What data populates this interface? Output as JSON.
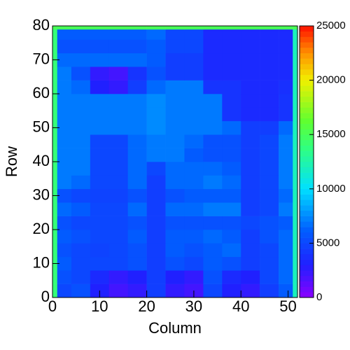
{
  "chart_data": {
    "type": "heatmap",
    "x_label": "Column",
    "y_label": "Row",
    "xbins": [
      0,
      1,
      4,
      8,
      12,
      16,
      20,
      24,
      28,
      32,
      36,
      40,
      44,
      48,
      51,
      52
    ],
    "ybins": [
      0,
      4,
      8,
      12,
      16,
      20,
      24,
      28,
      32,
      36,
      40,
      44,
      48,
      52,
      56,
      60,
      64,
      68,
      72,
      76,
      79,
      80
    ],
    "z": [
      [
        14000,
        5000,
        5500,
        3000,
        2000,
        2500,
        4500,
        2500,
        2000,
        5000,
        3000,
        2500,
        4500,
        6000,
        12000
      ],
      [
        14000,
        5500,
        5000,
        3500,
        2500,
        3000,
        4500,
        3000,
        2500,
        5500,
        3500,
        3000,
        5000,
        6500,
        12000
      ],
      [
        14000,
        6000,
        5000,
        5000,
        5000,
        5500,
        4500,
        5500,
        5000,
        6000,
        5500,
        4500,
        5000,
        6500,
        12000
      ],
      [
        14000,
        5500,
        5000,
        4800,
        5000,
        5500,
        4500,
        6000,
        5500,
        6000,
        6500,
        4500,
        5000,
        6500,
        12000
      ],
      [
        14000,
        6000,
        5500,
        5000,
        5000,
        6000,
        4500,
        6000,
        6000,
        6500,
        6000,
        4500,
        5500,
        6500,
        12000
      ],
      [
        14000,
        5500,
        5000,
        5000,
        5000,
        5500,
        4500,
        5500,
        5500,
        5500,
        5500,
        5000,
        5500,
        6000,
        12000
      ],
      [
        14000,
        6500,
        6000,
        5000,
        5000,
        6500,
        4500,
        6500,
        6500,
        7000,
        7000,
        4500,
        5000,
        7000,
        12000
      ],
      [
        14000,
        5500,
        5000,
        4800,
        4800,
        5500,
        4500,
        5500,
        6000,
        6000,
        6000,
        4500,
        5000,
        6500,
        12000
      ],
      [
        14000,
        7000,
        6500,
        5000,
        5000,
        6500,
        4500,
        6500,
        6500,
        7000,
        6500,
        4500,
        5000,
        7000,
        12000
      ],
      [
        14000,
        7000,
        7000,
        5000,
        5000,
        6500,
        5000,
        6500,
        6500,
        6500,
        6000,
        4500,
        5000,
        7000,
        12000
      ],
      [
        14000,
        7000,
        7000,
        5000,
        5000,
        6500,
        7000,
        7000,
        6000,
        5500,
        5500,
        4500,
        5000,
        7000,
        12000
      ],
      [
        14000,
        7000,
        7000,
        5000,
        5000,
        6500,
        7000,
        7000,
        6500,
        5500,
        5500,
        4500,
        5000,
        7000,
        12000
      ],
      [
        14000,
        7000,
        7000,
        7000,
        7000,
        7000,
        7500,
        7000,
        7000,
        7000,
        6500,
        4500,
        4500,
        6500,
        12000
      ],
      [
        14000,
        7000,
        7000,
        7000,
        7000,
        7000,
        7500,
        7000,
        7000,
        7000,
        4000,
        3500,
        3500,
        4000,
        12000
      ],
      [
        14000,
        7000,
        7000,
        7000,
        7000,
        7000,
        7500,
        7000,
        7000,
        7000,
        4000,
        3500,
        3500,
        4000,
        12000
      ],
      [
        14000,
        7000,
        6500,
        3000,
        2500,
        4500,
        6500,
        7000,
        7000,
        4000,
        4000,
        3500,
        3500,
        3800,
        12000
      ],
      [
        14000,
        7000,
        5500,
        2500,
        2000,
        4000,
        5500,
        4500,
        4500,
        3500,
        3500,
        3500,
        3500,
        3500,
        12000
      ],
      [
        14000,
        6500,
        6500,
        6500,
        6500,
        6500,
        6000,
        4500,
        4500,
        3500,
        3500,
        3500,
        3500,
        3500,
        12000
      ],
      [
        14000,
        5500,
        5500,
        5500,
        5500,
        5500,
        6000,
        5000,
        5000,
        3500,
        3500,
        3500,
        3500,
        3500,
        12000
      ],
      [
        14000,
        6000,
        6000,
        6000,
        6000,
        6000,
        6500,
        5000,
        5000,
        3500,
        3500,
        3500,
        3500,
        3500,
        12000
      ],
      [
        15000,
        15000,
        15000,
        15000,
        15000,
        15000,
        15000,
        15000,
        15000,
        15000,
        15000,
        15000,
        15000,
        15000,
        15000
      ]
    ],
    "xlim": [
      0,
      52
    ],
    "xticks": [
      0,
      10,
      20,
      30,
      40,
      50
    ],
    "ylim": [
      0,
      80
    ],
    "yticks": [
      0,
      10,
      20,
      30,
      40,
      50,
      60,
      70,
      80
    ],
    "zlim": [
      0,
      25000
    ],
    "zticks": [
      0,
      5000,
      10000,
      15000,
      20000,
      25000
    ]
  }
}
